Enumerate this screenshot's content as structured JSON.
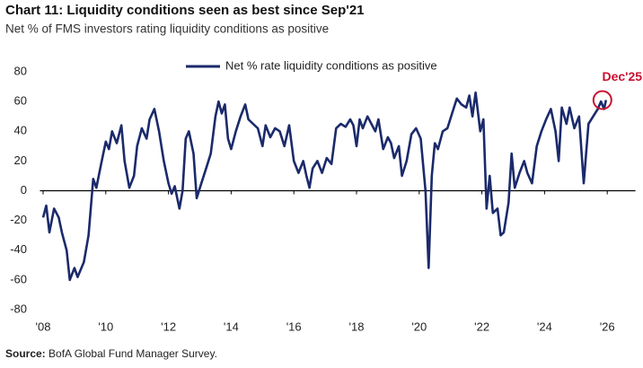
{
  "chart_data": {
    "type": "line",
    "title": "Chart 11: Liquidity conditions seen as best since Sep'21",
    "subtitle": "Net % of FMS investors rating liquidity conditions as positive",
    "source_label": "Source:",
    "source": "BofA Global Fund Manager Survey.",
    "annotation": "Dec'25",
    "annotation_color": "#c8102e",
    "legend_position": "top",
    "grid": false,
    "xlim": [
      2007.9,
      2026.9
    ],
    "xticks": [
      {
        "value": 2008,
        "label": "'08"
      },
      {
        "value": 2010,
        "label": "'10"
      },
      {
        "value": 2012,
        "label": "'12"
      },
      {
        "value": 2014,
        "label": "'14"
      },
      {
        "value": 2016,
        "label": "'16"
      },
      {
        "value": 2018,
        "label": "'18"
      },
      {
        "value": 2020,
        "label": "'20"
      },
      {
        "value": 2022,
        "label": "'22"
      },
      {
        "value": 2024,
        "label": "'24"
      },
      {
        "value": 2026,
        "label": "'26"
      }
    ],
    "ylim": [
      -80,
      80
    ],
    "yticks": [
      -80,
      -60,
      -40,
      -20,
      0,
      20,
      40,
      60,
      80
    ],
    "x": [
      2008.0,
      2008.1,
      2008.2,
      2008.35,
      2008.5,
      2008.6,
      2008.75,
      2008.85,
      2009.0,
      2009.1,
      2009.3,
      2009.45,
      2009.6,
      2009.7,
      2009.85,
      2010.0,
      2010.1,
      2010.2,
      2010.35,
      2010.5,
      2010.6,
      2010.75,
      2010.9,
      2011.0,
      2011.15,
      2011.3,
      2011.4,
      2011.55,
      2011.7,
      2011.85,
      2012.0,
      2012.1,
      2012.2,
      2012.35,
      2012.45,
      2012.55,
      2012.65,
      2012.8,
      2012.9,
      2013.05,
      2013.2,
      2013.35,
      2013.5,
      2013.6,
      2013.7,
      2013.8,
      2013.9,
      2014.0,
      2014.15,
      2014.3,
      2014.45,
      2014.55,
      2014.7,
      2014.85,
      2015.0,
      2015.1,
      2015.25,
      2015.4,
      2015.55,
      2015.7,
      2015.85,
      2016.0,
      2016.15,
      2016.3,
      2016.4,
      2016.5,
      2016.6,
      2016.75,
      2016.9,
      2017.05,
      2017.2,
      2017.35,
      2017.5,
      2017.65,
      2017.8,
      2017.9,
      2018.0,
      2018.1,
      2018.2,
      2018.35,
      2018.5,
      2018.6,
      2018.7,
      2018.85,
      2019.0,
      2019.1,
      2019.2,
      2019.35,
      2019.45,
      2019.6,
      2019.75,
      2019.9,
      2020.05,
      2020.2,
      2020.3,
      2020.4,
      2020.5,
      2020.6,
      2020.75,
      2020.9,
      2021.05,
      2021.2,
      2021.35,
      2021.5,
      2021.6,
      2021.7,
      2021.8,
      2021.95,
      2022.05,
      2022.15,
      2022.25,
      2022.35,
      2022.5,
      2022.6,
      2022.7,
      2022.85,
      2022.95,
      2023.05,
      2023.2,
      2023.35,
      2023.45,
      2023.6,
      2023.75,
      2023.9,
      2024.05,
      2024.2,
      2024.35,
      2024.45,
      2024.55,
      2024.7,
      2024.8,
      2024.95,
      2025.1,
      2025.25,
      2025.4,
      2025.55,
      2025.7,
      2025.8,
      2025.9,
      2025.96
    ],
    "series": [
      {
        "name": "Net % rate liquidity conditions as positive",
        "color": "#1b2a6b",
        "values": [
          -18,
          -10,
          -28,
          -12,
          -18,
          -28,
          -40,
          -60,
          -52,
          -58,
          -48,
          -30,
          8,
          2,
          18,
          33,
          28,
          40,
          32,
          44,
          20,
          2,
          10,
          30,
          42,
          35,
          48,
          55,
          40,
          20,
          5,
          -2,
          3,
          -12,
          0,
          35,
          40,
          25,
          -5,
          5,
          15,
          25,
          50,
          60,
          52,
          58,
          35,
          28,
          40,
          50,
          58,
          48,
          45,
          42,
          30,
          44,
          36,
          42,
          40,
          30,
          44,
          20,
          12,
          20,
          10,
          2,
          15,
          20,
          12,
          22,
          18,
          42,
          45,
          43,
          48,
          44,
          30,
          48,
          42,
          50,
          44,
          40,
          48,
          28,
          36,
          32,
          22,
          30,
          10,
          20,
          38,
          42,
          35,
          0,
          -52,
          10,
          32,
          28,
          40,
          42,
          52,
          62,
          58,
          56,
          64,
          50,
          66,
          40,
          48,
          -12,
          10,
          -15,
          -12,
          -30,
          -28,
          -8,
          25,
          2,
          12,
          20,
          12,
          5,
          30,
          40,
          48,
          55,
          40,
          20,
          56,
          45,
          56,
          42,
          50,
          5,
          45,
          50,
          55,
          60,
          55,
          61
        ]
      }
    ]
  }
}
